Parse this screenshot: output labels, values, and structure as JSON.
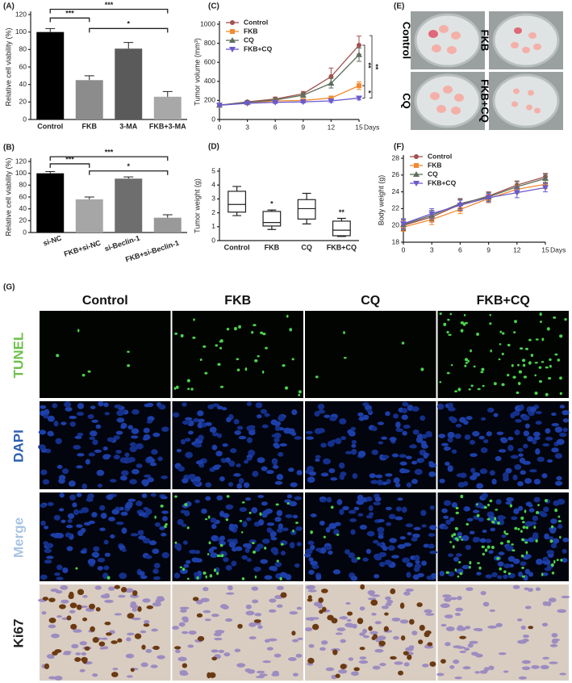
{
  "chart_data": [
    {
      "type": "bar",
      "label": "(A)",
      "y_label": "Relative cell viability (%)",
      "categories": [
        "Control",
        "FKB",
        "3-MA",
        "FKB+3-MA"
      ],
      "values": [
        100,
        45,
        81,
        26
      ],
      "errors": [
        4,
        5,
        7,
        6
      ],
      "colors": [
        "#000000",
        "#8c8c8c",
        "#5a5a5a",
        "#a8a8a8"
      ],
      "ylim": [
        0,
        120
      ],
      "yticks": [
        0,
        20,
        40,
        60,
        80,
        100,
        120
      ],
      "annotations": [
        "***",
        "***",
        "*"
      ]
    },
    {
      "type": "bar",
      "label": "(B)",
      "y_label": "Relative cell viability (%)",
      "categories": [
        "si-NC",
        "FKB+si-NC",
        "si-Beclin-1",
        "FKB+si-Beclin-1"
      ],
      "values": [
        100,
        56,
        91,
        25
      ],
      "errors": [
        3,
        4,
        3,
        5
      ],
      "colors": [
        "#000000",
        "#a6a6a6",
        "#6e6e6e",
        "#999999"
      ],
      "ylim": [
        0,
        120
      ],
      "yticks": [
        0,
        20,
        40,
        60,
        80,
        100,
        120
      ],
      "annotations": [
        "***",
        "***",
        "*"
      ]
    },
    {
      "type": "line",
      "label": "(C)",
      "y_label": "Tumor volume (mm³)",
      "x_label": "Days",
      "x": [
        0,
        3,
        6,
        9,
        12,
        15
      ],
      "xlim": [
        0,
        15
      ],
      "xticks": [
        0,
        3,
        6,
        9,
        12,
        15
      ],
      "ylim": [
        0,
        1000
      ],
      "yticks": [
        0,
        200,
        400,
        600,
        800,
        1000
      ],
      "legend": "upper left",
      "series": [
        {
          "name": "Control",
          "color": "#a0524e",
          "marker": "circle",
          "values": [
            150,
            185,
            215,
            270,
            450,
            780
          ],
          "errors": [
            10,
            15,
            20,
            25,
            90,
            95
          ]
        },
        {
          "name": "FKB",
          "color": "#f28a30",
          "marker": "square",
          "values": [
            150,
            175,
            195,
            200,
            225,
            355
          ],
          "errors": [
            10,
            12,
            12,
            15,
            20,
            40
          ]
        },
        {
          "name": "CQ",
          "color": "#5e6e5e",
          "marker": "triangle",
          "values": [
            150,
            180,
            205,
            255,
            380,
            680
          ],
          "errors": [
            10,
            15,
            18,
            20,
            50,
            70
          ]
        },
        {
          "name": "FKB+CQ",
          "color": "#6a5acd",
          "marker": "triangle-down",
          "values": [
            150,
            170,
            180,
            185,
            195,
            225
          ],
          "errors": [
            10,
            10,
            12,
            12,
            15,
            20
          ]
        }
      ],
      "annotations": [
        "**",
        "**",
        "*"
      ]
    },
    {
      "type": "box",
      "label": "(D)",
      "y_label": "Tumor weight (g)",
      "categories": [
        "Control",
        "FKB",
        "CQ",
        "FKB+CQ"
      ],
      "min": [
        1.8,
        0.8,
        1.2,
        0.3
      ],
      "q1": [
        2.05,
        1.05,
        1.55,
        0.35
      ],
      "median": [
        2.6,
        1.3,
        2.3,
        0.75
      ],
      "q3": [
        3.55,
        2.1,
        2.95,
        1.4
      ],
      "max": [
        3.9,
        2.2,
        3.4,
        1.6
      ],
      "ylim": [
        0,
        5
      ],
      "yticks": [
        0,
        1,
        2,
        3,
        4,
        5
      ],
      "annotations": [
        null,
        "*",
        null,
        "**"
      ]
    },
    {
      "type": "line",
      "label": "(F)",
      "y_label": "Body weight (g)",
      "x_label": "Days",
      "x": [
        0,
        3,
        6,
        9,
        12,
        15
      ],
      "xlim": [
        0,
        15
      ],
      "xticks": [
        0,
        3,
        6,
        9,
        12,
        15
      ],
      "ylim": [
        18,
        28
      ],
      "yticks": [
        18,
        20,
        22,
        24,
        26,
        28
      ],
      "legend": "upper left",
      "series": [
        {
          "name": "Control",
          "color": "#a0524e",
          "marker": "circle",
          "values": [
            20.0,
            21.0,
            22.5,
            23.5,
            24.8,
            25.8
          ],
          "errors": [
            0.6,
            0.6,
            0.6,
            0.5,
            0.5,
            0.4
          ]
        },
        {
          "name": "FKB",
          "color": "#f28a30",
          "marker": "square",
          "values": [
            19.8,
            20.7,
            21.9,
            23.2,
            24.3,
            24.9
          ],
          "errors": [
            0.5,
            0.6,
            0.5,
            0.5,
            0.5,
            0.5
          ]
        },
        {
          "name": "CQ",
          "color": "#5e6e5e",
          "marker": "triangle",
          "values": [
            20.1,
            21.2,
            22.6,
            23.4,
            24.6,
            25.6
          ],
          "errors": [
            0.6,
            0.6,
            0.6,
            0.5,
            0.6,
            0.5
          ]
        },
        {
          "name": "FKB+CQ",
          "color": "#6a5acd",
          "marker": "triangle-down",
          "values": [
            20.2,
            21.4,
            22.4,
            23.3,
            23.9,
            24.5
          ],
          "errors": [
            0.6,
            0.6,
            0.6,
            0.5,
            0.6,
            0.5
          ]
        }
      ]
    }
  ],
  "photos": {
    "label": "(E)",
    "groups": [
      "Control",
      "FKB",
      "CQ",
      "FKB+CQ"
    ]
  },
  "staining": {
    "label": "(G)",
    "columns": [
      "Control",
      "FKB",
      "CQ",
      "FKB+CQ"
    ],
    "rows": [
      "TUNEL",
      "DAPI",
      "Merge",
      "Ki67"
    ]
  }
}
